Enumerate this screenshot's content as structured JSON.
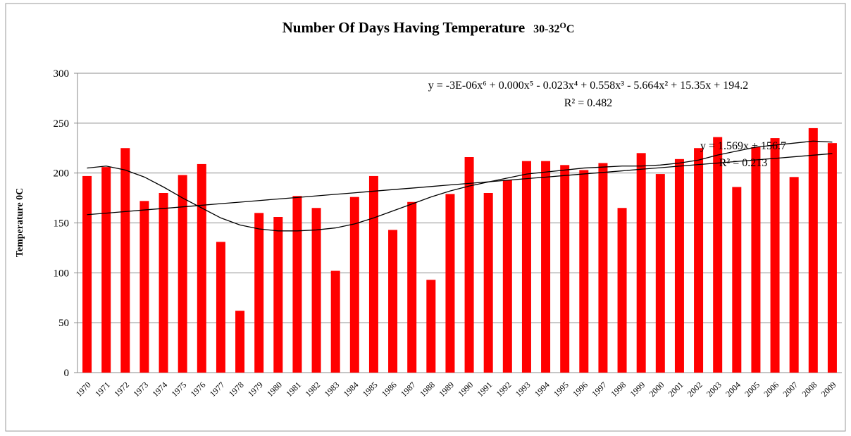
{
  "chart_data": {
    "type": "bar",
    "title": "Number Of  Days Having Temperature",
    "title_unit": {
      "range": "30-32",
      "sup": "O",
      "unit": "C"
    },
    "y_label": "Temperature 0C",
    "categories": [
      "1970",
      "1971",
      "1972",
      "1973",
      "1974",
      "1975",
      "1976",
      "1977",
      "1978",
      "1979",
      "1980",
      "1981",
      "1982",
      "1983",
      "1984",
      "1985",
      "1986",
      "1987",
      "1988",
      "1989",
      "1990",
      "1991",
      "1992",
      "1993",
      "1994",
      "1995",
      "1996",
      "1997",
      "1998",
      "1999",
      "2000",
      "2001",
      "2002",
      "2003",
      "2004",
      "2005",
      "2006",
      "2007",
      "2008",
      "2009"
    ],
    "values": [
      197,
      206,
      225,
      172,
      180,
      198,
      209,
      131,
      62,
      160,
      156,
      177,
      165,
      102,
      176,
      197,
      143,
      171,
      93,
      179,
      216,
      180,
      193,
      212,
      212,
      208,
      203,
      210,
      165,
      220,
      199,
      214,
      225,
      236,
      186,
      226,
      235,
      196,
      245,
      230
    ],
    "color": "#ff0000",
    "ylim": [
      0,
      300
    ],
    "yticks": [
      0,
      50,
      100,
      150,
      200,
      250,
      300
    ],
    "grid": true,
    "trendlines": [
      {
        "kind": "polynomial",
        "color": "#000000",
        "equation": "y = -3E-06x⁶ + 0.000x⁵ - 0.023x⁴ + 0.558x³ - 5.664x² + 15.35x + 194.2",
        "r2": "R² = 0.482",
        "values": [
          205,
          207,
          203,
          196,
          186,
          175,
          165,
          155,
          148,
          144,
          142,
          142,
          143,
          145,
          149,
          155,
          162,
          169,
          176,
          182,
          187,
          191,
          195,
          199,
          201,
          203,
          205,
          206,
          207,
          207,
          208,
          210,
          213,
          218,
          222,
          226,
          228,
          230,
          232,
          231
        ]
      },
      {
        "kind": "linear",
        "color": "#000000",
        "equation": "y = 1.569x + 156.7",
        "r2": "R² = 0.213",
        "values": [
          158.3,
          159.8,
          161.4,
          163.0,
          164.5,
          166.1,
          167.7,
          169.3,
          170.8,
          172.4,
          174.0,
          175.5,
          177.1,
          178.7,
          180.2,
          181.8,
          183.4,
          184.9,
          186.5,
          188.1,
          189.6,
          191.2,
          192.8,
          194.4,
          195.9,
          197.5,
          199.1,
          200.6,
          202.2,
          203.8,
          205.3,
          206.9,
          208.5,
          210.0,
          211.6,
          213.2,
          214.7,
          216.3,
          217.9,
          219.5
        ]
      }
    ]
  }
}
